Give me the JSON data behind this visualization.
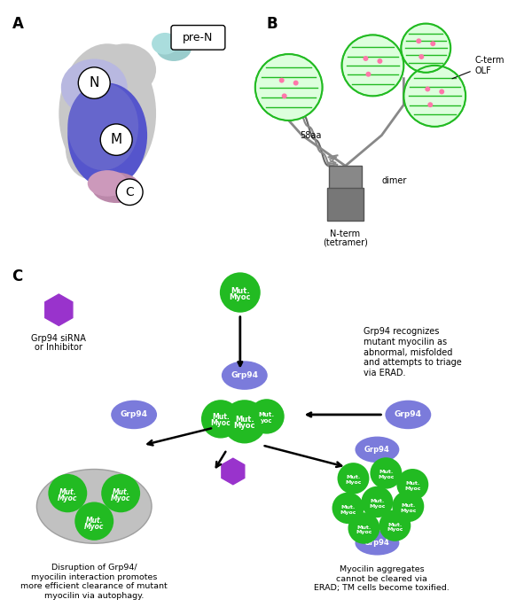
{
  "panel_labels": [
    "A",
    "B",
    "C"
  ],
  "green_color": "#22bb22",
  "green_dark": "#1a9a1a",
  "blue_color": "#7b7bdb",
  "blue_dark": "#5555bb",
  "purple_color": "#8833cc",
  "purple_hex_color": "#9933dd",
  "gray_color": "#aaaaaa",
  "gray_light": "#cccccc",
  "white": "#ffffff",
  "black": "#000000",
  "cyan_color": "#aadddd",
  "lavender_color": "#bbbbdd",
  "mauve_color": "#cc88bb",
  "dark_blue": "#4444aa",
  "dark_green": "#118811"
}
